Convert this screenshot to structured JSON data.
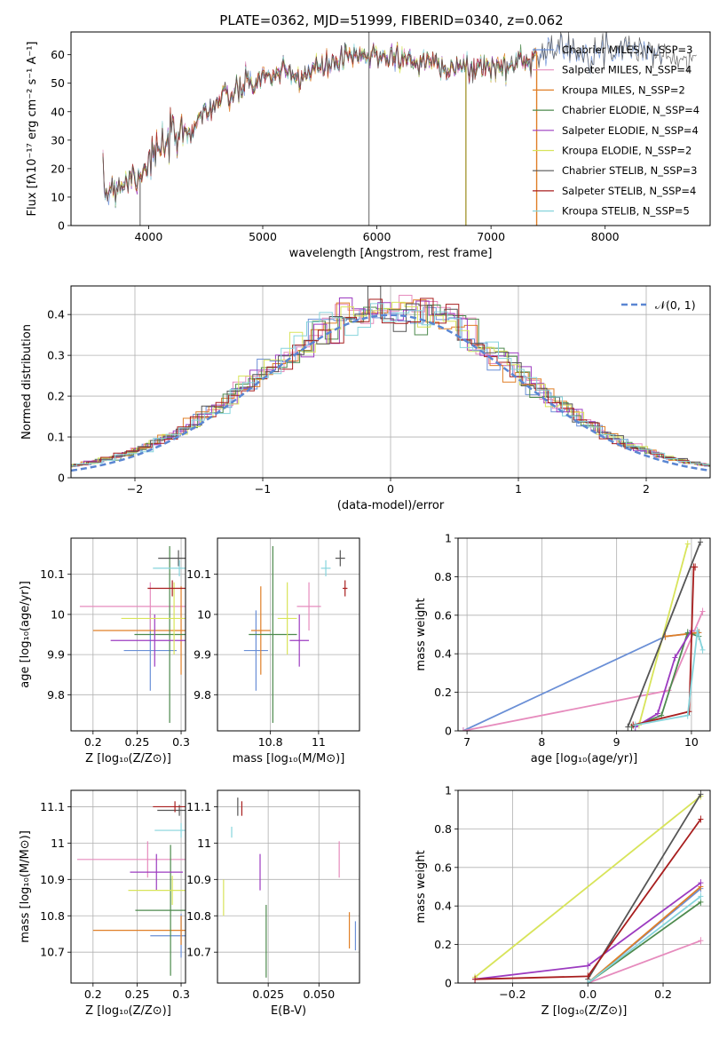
{
  "figure_title": "PLATE=0362, MJD=51999, FIBERID=0340, z=0.062",
  "series_colors": [
    "#6a8fd6",
    "#e68bbd",
    "#e07f27",
    "#4d8a4d",
    "#9c3bc0",
    "#d8e45a",
    "#555555",
    "#a81e1e",
    "#86d4dc"
  ],
  "chart_data": [
    {
      "id": "spectrum",
      "type": "line",
      "xlabel": "wavelength [Angstrom, rest frame]",
      "ylabel": "Flux [fλ10⁻¹⁷ erg cm⁻² s⁻¹ A⁻¹]",
      "xlim": [
        3320,
        8920
      ],
      "ylim": [
        0,
        68
      ],
      "xticks": [
        4000,
        5000,
        6000,
        7000,
        8000
      ],
      "yticks": [
        0,
        10,
        20,
        30,
        40,
        50,
        60
      ],
      "legend_position": "right",
      "series": [
        {
          "name": "Chabrier MILES, N_SSP=3"
        },
        {
          "name": "Salpeter MILES, N_SSP=4"
        },
        {
          "name": "Kroupa MILES, N_SSP=2"
        },
        {
          "name": "Chabrier ELODIE, N_SSP=4"
        },
        {
          "name": "Salpeter ELODIE, N_SSP=4"
        },
        {
          "name": "Kroupa ELODIE, N_SSP=2"
        },
        {
          "name": "Chabrier STELIB, N_SSP=3"
        },
        {
          "name": "Salpeter STELIB, N_SSP=4"
        },
        {
          "name": "Kroupa STELIB, N_SSP=5"
        }
      ],
      "continuum": {
        "x": [
          3600,
          3700,
          3800,
          3900,
          3950,
          4000,
          4050,
          4100,
          4200,
          4300,
          4400,
          4500,
          4600,
          4700,
          4800,
          4900,
          5000,
          5100,
          5200,
          5300,
          5400,
          5500,
          5600,
          5700,
          5800,
          5900,
          6000,
          6100,
          6200,
          6300,
          6400,
          6500,
          6600,
          6700,
          6800,
          6900,
          7000,
          7100,
          7200,
          7300,
          7400,
          7500,
          7600,
          7700,
          7800,
          7900,
          8000,
          8100,
          8200,
          8300,
          8400,
          8500,
          8600,
          8700,
          8800
        ],
        "y": [
          12,
          14,
          16,
          18,
          20,
          23,
          25,
          26,
          30,
          32,
          36,
          40,
          43,
          45,
          48,
          50,
          52,
          53,
          53,
          52,
          54,
          55,
          57,
          58,
          59,
          59,
          60,
          60,
          59,
          58,
          57,
          58,
          56,
          55,
          55,
          56,
          56,
          55,
          57,
          58,
          60,
          62,
          62,
          62,
          61,
          61,
          61,
          62,
          63,
          62,
          61,
          60,
          59,
          58,
          57
        ]
      },
      "spikes": [
        {
          "x": 3925,
          "y_low": 0,
          "y_high": 16
        },
        {
          "x": 5930,
          "y_low": 0,
          "y_high": 68
        },
        {
          "x": 6780,
          "y_low": 0,
          "y_high": 56
        },
        {
          "x": 7400,
          "y_low": 0,
          "y_high": 61
        }
      ]
    },
    {
      "id": "residuals",
      "type": "step",
      "xlabel": "(data-model)/error",
      "ylabel": "Normed distribution",
      "xlim": [
        -2.5,
        2.5
      ],
      "ylim": [
        0,
        0.47
      ],
      "xticks": [
        -2,
        -1,
        0,
        1,
        2
      ],
      "yticks": [
        0.0,
        0.1,
        0.2,
        0.3,
        0.4
      ],
      "legend": [
        {
          "name": "𝒩(0, 1)",
          "style": "dashed"
        }
      ],
      "bin_width": 0.1,
      "reference_curve": "normal(0,1)"
    },
    {
      "id": "age_vs_Z",
      "type": "scatter",
      "xlabel": "Z [log₁₀(Z/Z⊙)]",
      "ylabel": "age  [log₁₀(age/yr)]",
      "xlim": [
        0.175,
        0.305
      ],
      "ylim": [
        9.71,
        10.19
      ],
      "xticks": [
        0.2,
        0.25,
        0.3
      ],
      "yticks": [
        9.8,
        9.9,
        10.0,
        10.1
      ],
      "points": [
        {
          "x": 0.265,
          "y": 9.91,
          "xerr": 0.03,
          "yerr": 0.1
        },
        {
          "x": 0.265,
          "y": 10.02,
          "xerr": 0.08,
          "yerr": 0.06
        },
        {
          "x": 0.3,
          "y": 9.96,
          "xerr": 0.1,
          "yerr": 0.11
        },
        {
          "x": 0.287,
          "y": 9.95,
          "xerr": 0.04,
          "yerr": 0.22
        },
        {
          "x": 0.27,
          "y": 9.935,
          "xerr": 0.05,
          "yerr": 0.065
        },
        {
          "x": 0.292,
          "y": 9.99,
          "xerr": 0.06,
          "yerr": 0.09
        },
        {
          "x": 0.297,
          "y": 10.14,
          "xerr": 0.023,
          "yerr": 0.02
        },
        {
          "x": 0.29,
          "y": 10.065,
          "xerr": 0.028,
          "yerr": 0.02
        },
        {
          "x": 0.298,
          "y": 10.115,
          "xerr": 0.03,
          "yerr": 0.02
        }
      ]
    },
    {
      "id": "age_vs_mass",
      "type": "scatter",
      "xlabel": "mass [log₁₀(M/M⊙)]",
      "xlim": [
        10.58,
        11.17
      ],
      "ylim": [
        9.71,
        10.19
      ],
      "xticks": [
        10.8,
        11.0
      ],
      "yticks": [
        9.8,
        9.9,
        10.0,
        10.1
      ],
      "points": [
        {
          "x": 10.74,
          "y": 9.91,
          "xerr": 0.05,
          "yerr": 0.1
        },
        {
          "x": 10.96,
          "y": 10.02,
          "xerr": 0.05,
          "yerr": 0.06
        },
        {
          "x": 10.76,
          "y": 9.96,
          "xerr": 0.04,
          "yerr": 0.11
        },
        {
          "x": 10.81,
          "y": 9.95,
          "xerr": 0.1,
          "yerr": 0.22
        },
        {
          "x": 10.92,
          "y": 9.935,
          "xerr": 0.04,
          "yerr": 0.065
        },
        {
          "x": 10.87,
          "y": 9.99,
          "xerr": 0.04,
          "yerr": 0.09
        },
        {
          "x": 11.09,
          "y": 10.14,
          "xerr": 0.02,
          "yerr": 0.02
        },
        {
          "x": 11.11,
          "y": 10.065,
          "xerr": 0.01,
          "yerr": 0.02
        },
        {
          "x": 11.03,
          "y": 10.115,
          "xerr": 0.02,
          "yerr": 0.02
        }
      ]
    },
    {
      "id": "massweight_vs_age",
      "type": "line",
      "xlabel": "age  [log₁₀(age/yr)]",
      "ylabel": "mass weight",
      "xlim": [
        6.88,
        10.25
      ],
      "ylim": [
        0,
        1
      ],
      "xticks": [
        7,
        8,
        9,
        10
      ],
      "yticks": [
        0.0,
        0.2,
        0.4,
        0.6,
        0.8,
        1.0
      ],
      "series": [
        {
          "x": [
            6.95,
            9.65,
            10.1
          ],
          "y": [
            0.0,
            0.49,
            0.51
          ]
        },
        {
          "x": [
            6.95,
            9.7,
            10.15
          ],
          "y": [
            0.0,
            0.21,
            0.62
          ]
        },
        {
          "x": [
            9.65,
            10.1
          ],
          "y": [
            0.49,
            0.51
          ]
        },
        {
          "x": [
            9.2,
            9.6,
            9.95,
            10.1
          ],
          "y": [
            0.02,
            0.08,
            0.51,
            0.49
          ]
        },
        {
          "x": [
            9.25,
            9.55,
            9.78,
            10.0
          ],
          "y": [
            0.02,
            0.09,
            0.38,
            0.52
          ]
        },
        {
          "x": [
            9.3,
            9.95
          ],
          "y": [
            0.03,
            0.97
          ]
        },
        {
          "x": [
            9.15,
            10.12
          ],
          "y": [
            0.02,
            0.98
          ]
        },
        {
          "x": [
            9.22,
            9.97,
            10.03,
            10.05
          ],
          "y": [
            0.03,
            0.1,
            0.85,
            0.85
          ]
        },
        {
          "x": [
            9.25,
            9.95,
            10.08,
            10.15
          ],
          "y": [
            0.03,
            0.08,
            0.52,
            0.42
          ]
        }
      ]
    },
    {
      "id": "mass_vs_Z",
      "type": "scatter",
      "xlabel": "Z [log₁₀(Z/Z⊙)]",
      "ylabel": "mass [log₁₀(M/M⊙)]",
      "xlim": [
        0.175,
        0.305
      ],
      "ylim": [
        10.615,
        11.145
      ],
      "xticks": [
        0.2,
        0.25,
        0.3
      ],
      "yticks": [
        10.7,
        10.8,
        10.9,
        11.0,
        11.1
      ],
      "points": [
        {
          "x": 0.3,
          "y": 10.745,
          "xerr": 0.035,
          "yerr": 0.06
        },
        {
          "x": 0.262,
          "y": 10.955,
          "xerr": 0.08,
          "yerr": 0.05
        },
        {
          "x": 0.3,
          "y": 10.76,
          "xerr": 0.1,
          "yerr": 0.04
        },
        {
          "x": 0.288,
          "y": 10.815,
          "xerr": 0.04,
          "yerr": 0.18
        },
        {
          "x": 0.272,
          "y": 10.92,
          "xerr": 0.03,
          "yerr": 0.05
        },
        {
          "x": 0.29,
          "y": 10.87,
          "xerr": 0.05,
          "yerr": 0.04
        },
        {
          "x": 0.298,
          "y": 11.09,
          "xerr": 0.025,
          "yerr": 0.015
        },
        {
          "x": 0.293,
          "y": 11.1,
          "xerr": 0.025,
          "yerr": 0.015
        },
        {
          "x": 0.3,
          "y": 11.035,
          "xerr": 0.03,
          "yerr": 0.02
        }
      ]
    },
    {
      "id": "mass_vs_EBV",
      "type": "scatter",
      "xlabel": "E(B-V)",
      "xlim": [
        0.0,
        0.07
      ],
      "ylim": [
        10.615,
        11.145
      ],
      "xticks": [
        0.025,
        0.05
      ],
      "xtick_labels": [
        "0.025",
        "0.050"
      ],
      "yticks": [
        10.7,
        10.8,
        10.9,
        11.0,
        11.1
      ],
      "points": [
        {
          "x": 0.068,
          "y": 10.745,
          "xerr": 0.0,
          "yerr": 0.04
        },
        {
          "x": 0.06,
          "y": 10.955,
          "xerr": 0.0,
          "yerr": 0.05
        },
        {
          "x": 0.065,
          "y": 10.76,
          "xerr": 0.0,
          "yerr": 0.05
        },
        {
          "x": 0.024,
          "y": 10.73,
          "xerr": 0.0,
          "yerr": 0.1
        },
        {
          "x": 0.021,
          "y": 10.92,
          "xerr": 0.0,
          "yerr": 0.05
        },
        {
          "x": 0.003,
          "y": 10.85,
          "xerr": 0.0,
          "yerr": 0.05
        },
        {
          "x": 0.01,
          "y": 11.1,
          "xerr": 0.0,
          "yerr": 0.025
        },
        {
          "x": 0.012,
          "y": 11.095,
          "xerr": 0.0,
          "yerr": 0.02
        },
        {
          "x": 0.007,
          "y": 11.03,
          "xerr": 0.0,
          "yerr": 0.015
        }
      ]
    },
    {
      "id": "massweight_vs_Z",
      "type": "line",
      "xlabel": "Z [log₁₀(Z/Z⊙)]",
      "ylabel": "mass weight",
      "xlim": [
        -0.345,
        0.325
      ],
      "ylim": [
        0,
        1
      ],
      "xticks": [
        -0.2,
        0.0,
        0.2
      ],
      "xtick_labels": [
        "−0.2",
        "0.0",
        "0.2"
      ],
      "yticks": [
        0.0,
        0.2,
        0.4,
        0.6,
        0.8,
        1.0
      ],
      "series": [
        {
          "x": [
            0.0,
            0.3
          ],
          "y": [
            0.0,
            0.49
          ]
        },
        {
          "x": [
            0.0,
            0.3
          ],
          "y": [
            0.0,
            0.22
          ]
        },
        {
          "x": [
            0.0,
            0.3
          ],
          "y": [
            0.0,
            0.5
          ]
        },
        {
          "x": [
            0.0,
            0.3
          ],
          "y": [
            0.0,
            0.42
          ]
        },
        {
          "x": [
            -0.3,
            0.0,
            0.3
          ],
          "y": [
            0.02,
            0.09,
            0.52
          ]
        },
        {
          "x": [
            -0.3,
            0.3
          ],
          "y": [
            0.03,
            0.97
          ]
        },
        {
          "x": [
            0.0,
            0.3
          ],
          "y": [
            0.02,
            0.98
          ]
        },
        {
          "x": [
            -0.3,
            0.0,
            0.3
          ],
          "y": [
            0.02,
            0.035,
            0.85
          ]
        },
        {
          "x": [
            0.0,
            0.3
          ],
          "y": [
            0.0,
            0.45
          ]
        }
      ]
    }
  ]
}
